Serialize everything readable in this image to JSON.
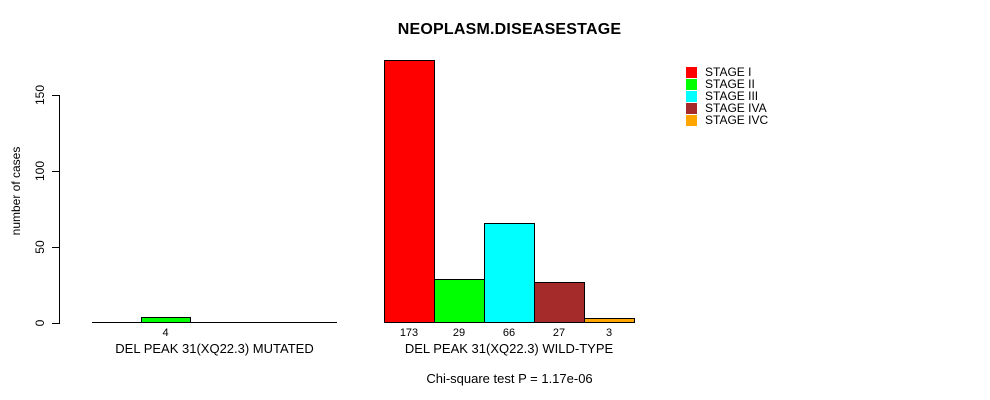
{
  "title": "NEOPLASM.DISEASESTAGE",
  "annotation": "Chi-square test P = 1.17e-06",
  "chart_data": {
    "type": "bar",
    "title": "NEOPLASM.DISEASESTAGE",
    "xlabel": "",
    "ylabel": "number of cases",
    "ylim": [
      0,
      173
    ],
    "yticks": [
      0,
      50,
      100,
      150
    ],
    "grid": false,
    "legend_position": "top-right",
    "value_labels_shown_when": "value > 0",
    "categories": [
      "DEL PEAK 31(XQ22.3) MUTATED",
      "DEL PEAK 31(XQ22.3) WILD-TYPE"
    ],
    "series": [
      {
        "name": "STAGE I",
        "color": "#FF0000",
        "values": [
          0,
          173
        ]
      },
      {
        "name": "STAGE II",
        "color": "#00FF00",
        "values": [
          4,
          29
        ]
      },
      {
        "name": "STAGE III",
        "color": "#00FFFF",
        "values": [
          0,
          66
        ]
      },
      {
        "name": "STAGE IVA",
        "color": "#A52A2A",
        "values": [
          0,
          27
        ]
      },
      {
        "name": "STAGE IVC",
        "color": "#FFA500",
        "values": [
          0,
          3
        ]
      }
    ]
  }
}
